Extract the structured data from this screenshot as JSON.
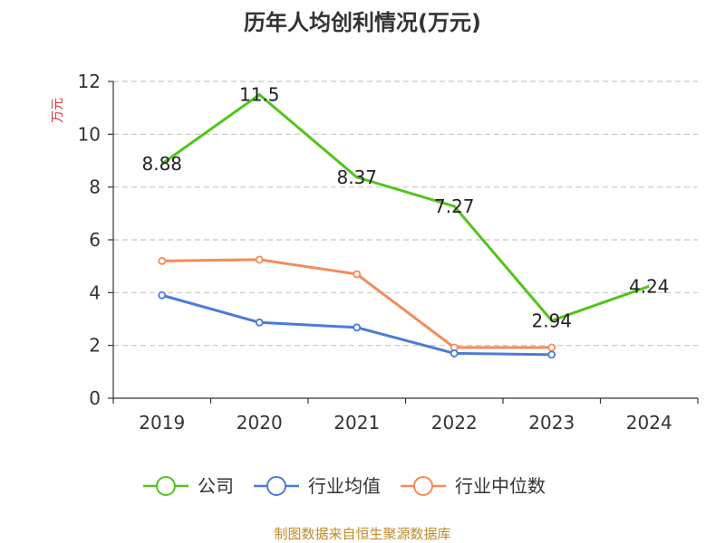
{
  "chart_data": {
    "type": "line",
    "title": "历年人均创利情况(万元)",
    "ylabel": "万元",
    "categories": [
      "2019",
      "2020",
      "2021",
      "2022",
      "2023",
      "2024"
    ],
    "ylim": [
      0,
      12
    ],
    "yticks": [
      0,
      2,
      4,
      6,
      8,
      10,
      12
    ],
    "grid": true,
    "legend_position": "bottom",
    "series": [
      {
        "name": "公司",
        "color": "#52c41a",
        "values": [
          8.88,
          11.5,
          8.37,
          7.27,
          2.94,
          4.24
        ],
        "labels": [
          "8.88",
          "11.5",
          "8.37",
          "7.27",
          "2.94",
          "4.24"
        ]
      },
      {
        "name": "行业均值",
        "color": "#4a7bd8",
        "values": [
          3.9,
          2.87,
          2.68,
          1.7,
          1.65,
          null
        ]
      },
      {
        "name": "行业中位数",
        "color": "#f58b58",
        "values": [
          5.2,
          5.25,
          4.7,
          1.92,
          1.92,
          null
        ]
      }
    ]
  },
  "source": "制图数据来自恒生聚源数据库",
  "colors": {
    "source": "#c08a2e",
    "unit": "#e03030",
    "grid": "#c8c8c8",
    "axis": "#333333"
  }
}
